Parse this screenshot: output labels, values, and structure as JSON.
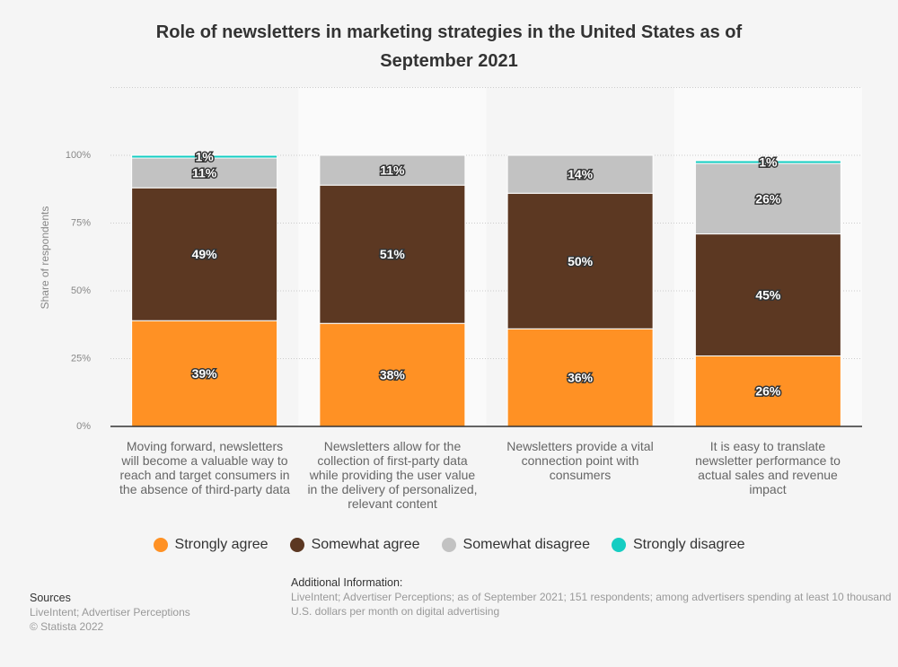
{
  "chart_data": {
    "type": "bar",
    "stacked": true,
    "title": "Role of newsletters in marketing strategies in the United States as of September 2021",
    "xlabel": "",
    "ylabel": "Share of respondents",
    "ylim": [
      0,
      125
    ],
    "yticks": [
      0,
      25,
      50,
      75,
      100
    ],
    "ytick_labels": [
      "0%",
      "25%",
      "50%",
      "75%",
      "100%"
    ],
    "grid": true,
    "legend_position": "bottom",
    "categories": [
      "Moving forward, newsletters will become a valuable way to reach and target consumers in the absence of third-party data",
      "Newsletters allow for the collection of first-party data while providing the user value in the delivery of personalized, relevant content",
      "Newsletters provide a vital connection point with consumers",
      "It is easy to translate newsletter performance to actual sales and revenue impact"
    ],
    "series": [
      {
        "name": "Strongly agree",
        "color": "#ff9124",
        "values": [
          39,
          38,
          36,
          26
        ]
      },
      {
        "name": "Somewhat agree",
        "color": "#5c3822",
        "values": [
          49,
          51,
          50,
          45
        ]
      },
      {
        "name": "Somewhat disagree",
        "color": "#c2c2c2",
        "values": [
          11,
          11,
          14,
          26
        ]
      },
      {
        "name": "Strongly disagree",
        "color": "#15cdc2",
        "values": [
          1,
          0,
          0,
          1
        ]
      }
    ],
    "data_labels": [
      [
        "39%",
        "49%",
        "11%",
        "1%"
      ],
      [
        "38%",
        "51%",
        "11%",
        ""
      ],
      [
        "36%",
        "50%",
        "14%",
        ""
      ],
      [
        "26%",
        "45%",
        "26%",
        "1%"
      ]
    ]
  },
  "title_line1": "Role of newsletters in marketing strategies in the United States as of",
  "title_line2": "September 2021",
  "category_labels": [
    "Moving forward, newsletters will become a valuable way to reach and target consumers in the absence of third-party data",
    "Newsletters allow for the collection of first-party data while providing the user value in the delivery of personalized, relevant content",
    "Newsletters provide a vital connection point with consumers",
    "It is easy to translate newsletter performance to actual sales and revenue impact"
  ],
  "legend": [
    {
      "label": "Strongly agree",
      "color": "#ff9124"
    },
    {
      "label": "Somewhat agree",
      "color": "#5c3822"
    },
    {
      "label": "Somewhat disagree",
      "color": "#c2c2c2"
    },
    {
      "label": "Strongly disagree",
      "color": "#15cdc2"
    }
  ],
  "sources": {
    "heading": "Sources",
    "line1": "LiveIntent; Advertiser Perceptions",
    "line2": "© Statista 2022"
  },
  "additional_info": {
    "heading": "Additional Information:",
    "text": "LiveIntent; Advertiser Perceptions; as of September 2021; 151 respondents; among advertisers spending at least 10 thousand U.S. dollars per month on digital advertising"
  }
}
